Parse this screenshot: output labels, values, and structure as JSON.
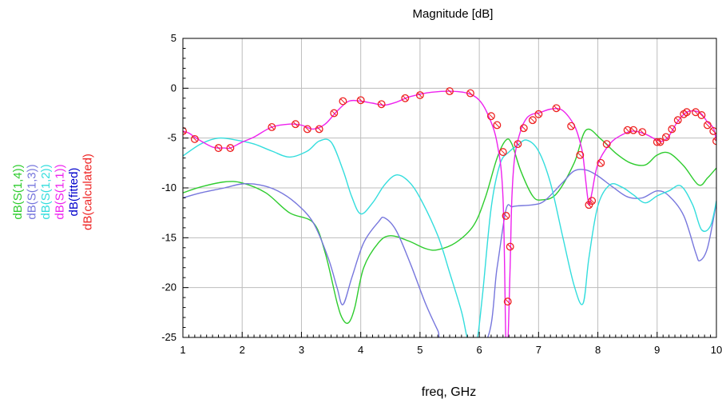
{
  "chart_data": {
    "type": "line",
    "title": "Magnitude [dB]",
    "xlabel": "freq, GHz",
    "ylabel": "",
    "xlim": [
      1,
      10
    ],
    "ylim": [
      -25,
      5
    ],
    "xticks": [
      1,
      2,
      3,
      4,
      5,
      6,
      7,
      8,
      9,
      10
    ],
    "yticks": [
      5,
      0,
      -5,
      -10,
      -15,
      -20,
      -25
    ],
    "grid": true,
    "legend_position": "left, rotated vertical",
    "series": [
      {
        "name": "dB(S(1,4))",
        "color": "#2ecc2e",
        "marker": "none",
        "x": [
          1,
          1.3,
          1.7,
          2,
          2.4,
          2.8,
          3.2,
          3.4,
          3.6,
          3.7,
          3.8,
          3.9,
          4.05,
          4.3,
          4.5,
          4.8,
          5.1,
          5.3,
          5.6,
          5.9,
          6.1,
          6.3,
          6.45,
          6.55,
          6.7,
          6.9,
          7.05,
          7.3,
          7.6,
          7.8,
          8.05,
          8.3,
          8.55,
          8.8,
          9.0,
          9.2,
          9.45,
          9.7,
          9.85,
          10
        ],
        "y": [
          -10.5,
          -9.9,
          -9.4,
          -9.5,
          -10.5,
          -12.5,
          -13.5,
          -16.5,
          -21.5,
          -23.2,
          -23.5,
          -22,
          -18,
          -15.5,
          -14.8,
          -15.3,
          -16.1,
          -16.2,
          -15.5,
          -13.8,
          -11,
          -7,
          -5.2,
          -5.6,
          -8.3,
          -10.8,
          -11.2,
          -10.6,
          -7.5,
          -4.2,
          -5.1,
          -6.5,
          -7.5,
          -7.7,
          -6.7,
          -6.5,
          -7.8,
          -9.7,
          -9,
          -8
        ]
      },
      {
        "name": "dB(S(1,3))",
        "color": "#7777dd",
        "marker": "none",
        "x": [
          1,
          1.3,
          1.7,
          2,
          2.3,
          2.6,
          2.9,
          3.2,
          3.45,
          3.6,
          3.7,
          3.85,
          4.05,
          4.3,
          4.4,
          4.6,
          4.85,
          5.1,
          5.3,
          5.4,
          6.1,
          6.3,
          6.45,
          6.55,
          6.65,
          6.9,
          7.1,
          7.4,
          7.6,
          7.8,
          8.0,
          8.25,
          8.5,
          8.75,
          9.0,
          9.2,
          9.45,
          9.65,
          9.72,
          9.85,
          10
        ],
        "y": [
          -11,
          -10.5,
          -10,
          -9.6,
          -9.7,
          -10.3,
          -11.5,
          -13.5,
          -17,
          -20,
          -21.7,
          -19,
          -15.5,
          -13.4,
          -13,
          -14.3,
          -17.8,
          -21.7,
          -24.3,
          -25.5,
          -25.5,
          -18,
          -12.2,
          -11.9,
          -11.8,
          -11.7,
          -11.3,
          -9.5,
          -8.3,
          -8.2,
          -8.8,
          -9.9,
          -10.9,
          -11,
          -10.3,
          -10.8,
          -12.8,
          -16.5,
          -17.3,
          -16,
          -11.5
        ]
      },
      {
        "name": "dB(S(1,2))",
        "color": "#33dddd",
        "marker": "none",
        "x": [
          1,
          1.3,
          1.6,
          1.9,
          2.2,
          2.5,
          2.8,
          3.1,
          3.3,
          3.5,
          3.7,
          3.85,
          4.0,
          4.2,
          4.4,
          4.6,
          4.8,
          5.0,
          5.3,
          5.5,
          5.7,
          5.82,
          5.95,
          6.05,
          6.2,
          6.35,
          6.5,
          6.65,
          6.8,
          7.0,
          7.2,
          7.4,
          7.6,
          7.75,
          7.85,
          8.0,
          8.2,
          8.4,
          8.6,
          8.8,
          9.0,
          9.2,
          9.4,
          9.6,
          9.75,
          9.9,
          10
        ],
        "y": [
          -6.8,
          -5.6,
          -5.0,
          -5.2,
          -5.6,
          -6.3,
          -6.9,
          -6.3,
          -5.3,
          -5.4,
          -8.2,
          -10.9,
          -12.6,
          -11.5,
          -9.7,
          -8.7,
          -9.3,
          -11,
          -14.8,
          -18.5,
          -22.4,
          -25.5,
          -25.5,
          -21,
          -12,
          -7.6,
          -6.4,
          -5.7,
          -5.2,
          -6.3,
          -9.5,
          -14.7,
          -19.8,
          -21.6,
          -17,
          -11.8,
          -9.7,
          -9.9,
          -10.7,
          -11.5,
          -10.8,
          -10.3,
          -9.8,
          -11.7,
          -14.2,
          -13.8,
          -11.3
        ]
      },
      {
        "name": "dB(S(1,1))",
        "color": "#ee22ee",
        "marker": "none",
        "x": [
          1,
          1.1,
          1.25,
          1.5,
          1.7,
          1.8,
          2.0,
          2.2,
          2.5,
          2.8,
          3.0,
          3.2,
          3.4,
          3.6,
          3.8,
          4.0,
          4.2,
          4.4,
          4.6,
          4.8,
          5.0,
          5.2,
          5.5,
          5.8,
          6.0,
          6.15,
          6.3,
          6.4,
          6.45,
          6.48,
          6.52,
          6.55,
          6.6,
          6.7,
          6.8,
          6.9,
          7.0,
          7.2,
          7.4,
          7.6,
          7.7,
          7.75,
          7.8,
          7.85,
          7.9,
          8.0,
          8.2,
          8.4,
          8.6,
          8.8,
          9.0,
          9.1,
          9.2,
          9.35,
          9.5,
          9.65,
          9.75,
          9.85,
          9.95,
          10
        ],
        "y": [
          -4.3,
          -4.5,
          -5.1,
          -5.9,
          -6.0,
          -6.0,
          -5.4,
          -4.9,
          -3.9,
          -3.6,
          -3.7,
          -4.1,
          -3.6,
          -2.3,
          -1.3,
          -1.3,
          -1.5,
          -1.7,
          -1.4,
          -0.9,
          -0.6,
          -0.4,
          -0.3,
          -0.5,
          -1.2,
          -2.7,
          -5.5,
          -11,
          -26,
          -26,
          -18,
          -11,
          -6.8,
          -4.2,
          -3.0,
          -2.6,
          -2.5,
          -2.1,
          -2.2,
          -3.7,
          -5.4,
          -6.8,
          -9.5,
          -11.7,
          -10.5,
          -7.6,
          -5.6,
          -4.7,
          -4.3,
          -4.6,
          -5.2,
          -5.3,
          -4.8,
          -3.3,
          -2.4,
          -2.3,
          -2.6,
          -3.4,
          -4.0,
          -5.3
        ]
      },
      {
        "name": "dB(fitted)",
        "color": "#0000cc",
        "marker": "none",
        "x": [],
        "y": []
      },
      {
        "name": "dB(calculated)",
        "color": "#ee2222",
        "marker": "circle",
        "x": [
          1.0,
          1.2,
          1.6,
          1.8,
          2.5,
          2.9,
          3.1,
          3.3,
          3.55,
          3.7,
          4.0,
          4.35,
          4.75,
          5.0,
          5.5,
          5.85,
          6.2,
          6.3,
          6.4,
          6.45,
          6.48,
          6.52,
          6.65,
          6.75,
          6.9,
          7.0,
          7.3,
          7.55,
          7.7,
          7.85,
          7.9,
          8.05,
          8.15,
          8.5,
          8.6,
          8.75,
          9.0,
          9.05,
          9.15,
          9.25,
          9.35,
          9.45,
          9.5,
          9.65,
          9.75,
          9.85,
          9.95,
          10.0
        ],
        "y": [
          -4.3,
          -5.1,
          -6.0,
          -6.0,
          -3.9,
          -3.6,
          -4.1,
          -4.1,
          -2.5,
          -1.3,
          -1.2,
          -1.6,
          -1.0,
          -0.7,
          -0.3,
          -0.5,
          -2.8,
          -3.7,
          -6.4,
          -12.8,
          -21.4,
          -15.9,
          -5.6,
          -4.0,
          -3.2,
          -2.6,
          -2.0,
          -3.8,
          -6.7,
          -11.7,
          -11.3,
          -7.5,
          -5.6,
          -4.2,
          -4.2,
          -4.4,
          -5.4,
          -5.4,
          -4.9,
          -4.1,
          -3.2,
          -2.6,
          -2.4,
          -2.4,
          -2.7,
          -3.7,
          -4.3,
          -5.3
        ]
      }
    ]
  }
}
